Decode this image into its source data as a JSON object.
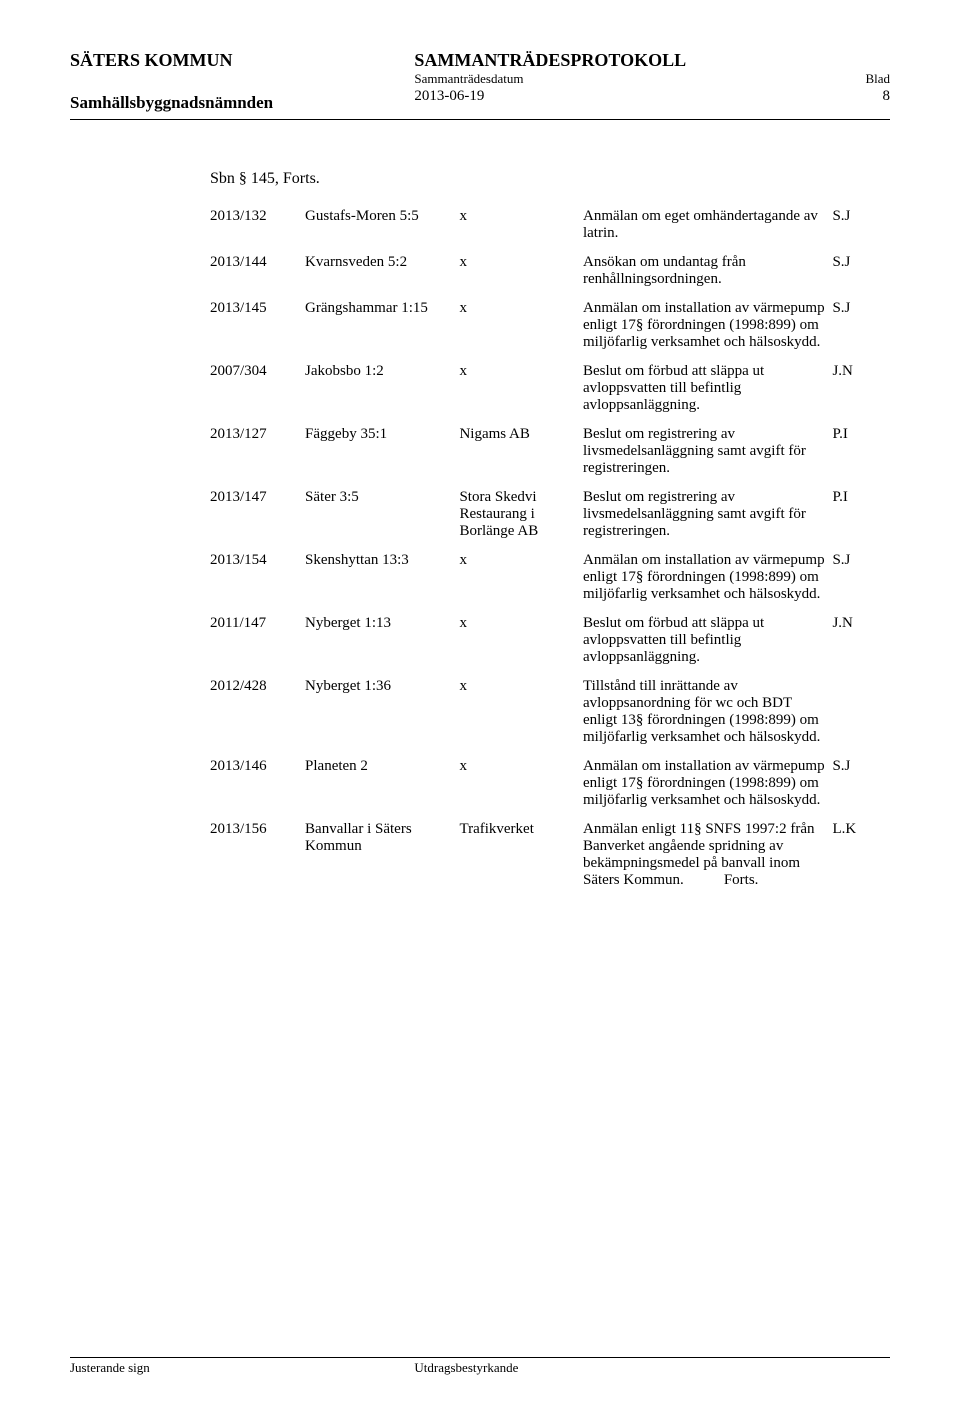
{
  "header": {
    "org": "SÄTERS KOMMUN",
    "committee": "Samhällsbyggnadsnämnden",
    "docType": "SAMMANTRÄDESPROTOKOLL",
    "dateLabel": "Sammanträdesdatum",
    "pageLabel": "Blad",
    "date": "2013-06-19",
    "page": "8"
  },
  "sectionTitle": "Sbn § 145, Forts.",
  "rows": [
    {
      "case": "2013/132",
      "prop": "Gustafs-Moren 5:5",
      "applicant": "x",
      "desc": "Anmälan om eget omhändertagande av latrin.",
      "sig": "S.J"
    },
    {
      "case": "2013/144",
      "prop": "Kvarnsveden 5:2",
      "applicant": "x",
      "desc": "Ansökan om undantag från renhållningsordningen.",
      "sig": "S.J"
    },
    {
      "case": "2013/145",
      "prop": "Grängshammar 1:15",
      "applicant": "x",
      "desc": "Anmälan om installation av värmepump enligt 17§ förordningen (1998:899) om miljöfarlig verksamhet och hälsoskydd.",
      "sig": "S.J"
    },
    {
      "case": "2007/304",
      "prop": "Jakobsbo 1:2",
      "applicant": "x",
      "desc": "Beslut om förbud att släppa ut avloppsvatten till befintlig avloppsanläggning.",
      "sig": "J.N"
    },
    {
      "case": "2013/127",
      "prop": "Fäggeby 35:1",
      "applicant": "Nigams AB",
      "desc": "Beslut om registrering av livsmedelsanläggning samt avgift för registreringen.",
      "sig": "P.I"
    },
    {
      "case": "2013/147",
      "prop": "Säter 3:5",
      "applicant": "Stora Skedvi Restaurang i Borlänge AB",
      "desc": "Beslut om registrering av livsmedelsanläggning samt avgift för registreringen.",
      "sig": "P.I"
    },
    {
      "case": "2013/154",
      "prop": "Skenshyttan 13:3",
      "applicant": "x",
      "desc": "Anmälan om installation av värmepump enligt 17§ förordningen (1998:899) om miljöfarlig verksamhet och hälsoskydd.",
      "sig": "S.J"
    },
    {
      "case": "2011/147",
      "prop": "Nyberget 1:13",
      "applicant": "x",
      "desc": "Beslut om förbud att släppa ut avloppsvatten till befintlig avloppsanläggning.",
      "sig": "J.N"
    },
    {
      "case": "2012/428",
      "prop": "Nyberget 1:36",
      "applicant": "x",
      "desc": "Tillstånd till inrättande av avloppsanordning för wc och BDT enligt 13§ förordningen (1998:899) om miljöfarlig verksamhet och hälsoskydd.",
      "sig": ""
    },
    {
      "case": "2013/146",
      "prop": "Planeten 2",
      "applicant": "x",
      "desc": "Anmälan om installation av värmepump enligt 17§ förordningen (1998:899) om miljöfarlig verksamhet och hälsoskydd.",
      "sig": "S.J"
    },
    {
      "case": "2013/156",
      "prop": "Banvallar i Säters Kommun",
      "applicant": "Trafikverket",
      "desc": "Anmälan enligt 11§ SNFS 1997:2 från Banverket angående spridning av bekämpningsmedel på banvall inom Säters Kommun.",
      "descSuffix": "Forts.",
      "sig": "L.K"
    }
  ],
  "footer": {
    "signLabel": "Justerande sign",
    "attestLabel": "Utdragsbestyrkande"
  }
}
